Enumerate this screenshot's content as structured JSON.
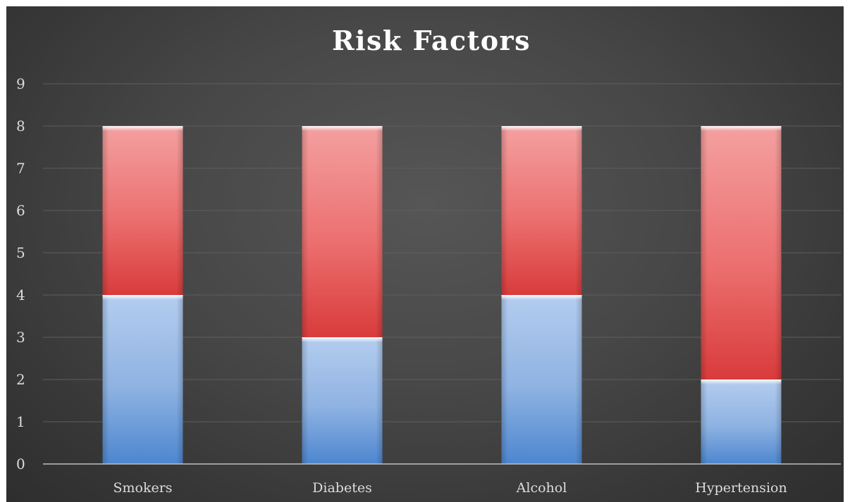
{
  "chart_data": {
    "type": "bar",
    "stacked": true,
    "title": "Risk Factors",
    "xlabel": "",
    "ylabel": "",
    "categories": [
      "Smokers",
      "Diabetes",
      "Alcohol",
      "Hypertension"
    ],
    "series": [
      {
        "values": [
          4,
          3,
          4,
          2
        ],
        "color": "#7fa8dc"
      },
      {
        "values": [
          4,
          5,
          4,
          6
        ],
        "color": "#e65a5a"
      }
    ],
    "ylim": [
      0,
      9
    ],
    "yticks": [
      "0",
      "1",
      "2",
      "3",
      "4",
      "5",
      "6",
      "7",
      "8",
      "9"
    ],
    "grid": true,
    "legend": "none"
  },
  "colors": {
    "background": "#474747",
    "gridline": "#5e5e5e",
    "axis": "#bfbfbf",
    "text": "#dcdcdc"
  }
}
